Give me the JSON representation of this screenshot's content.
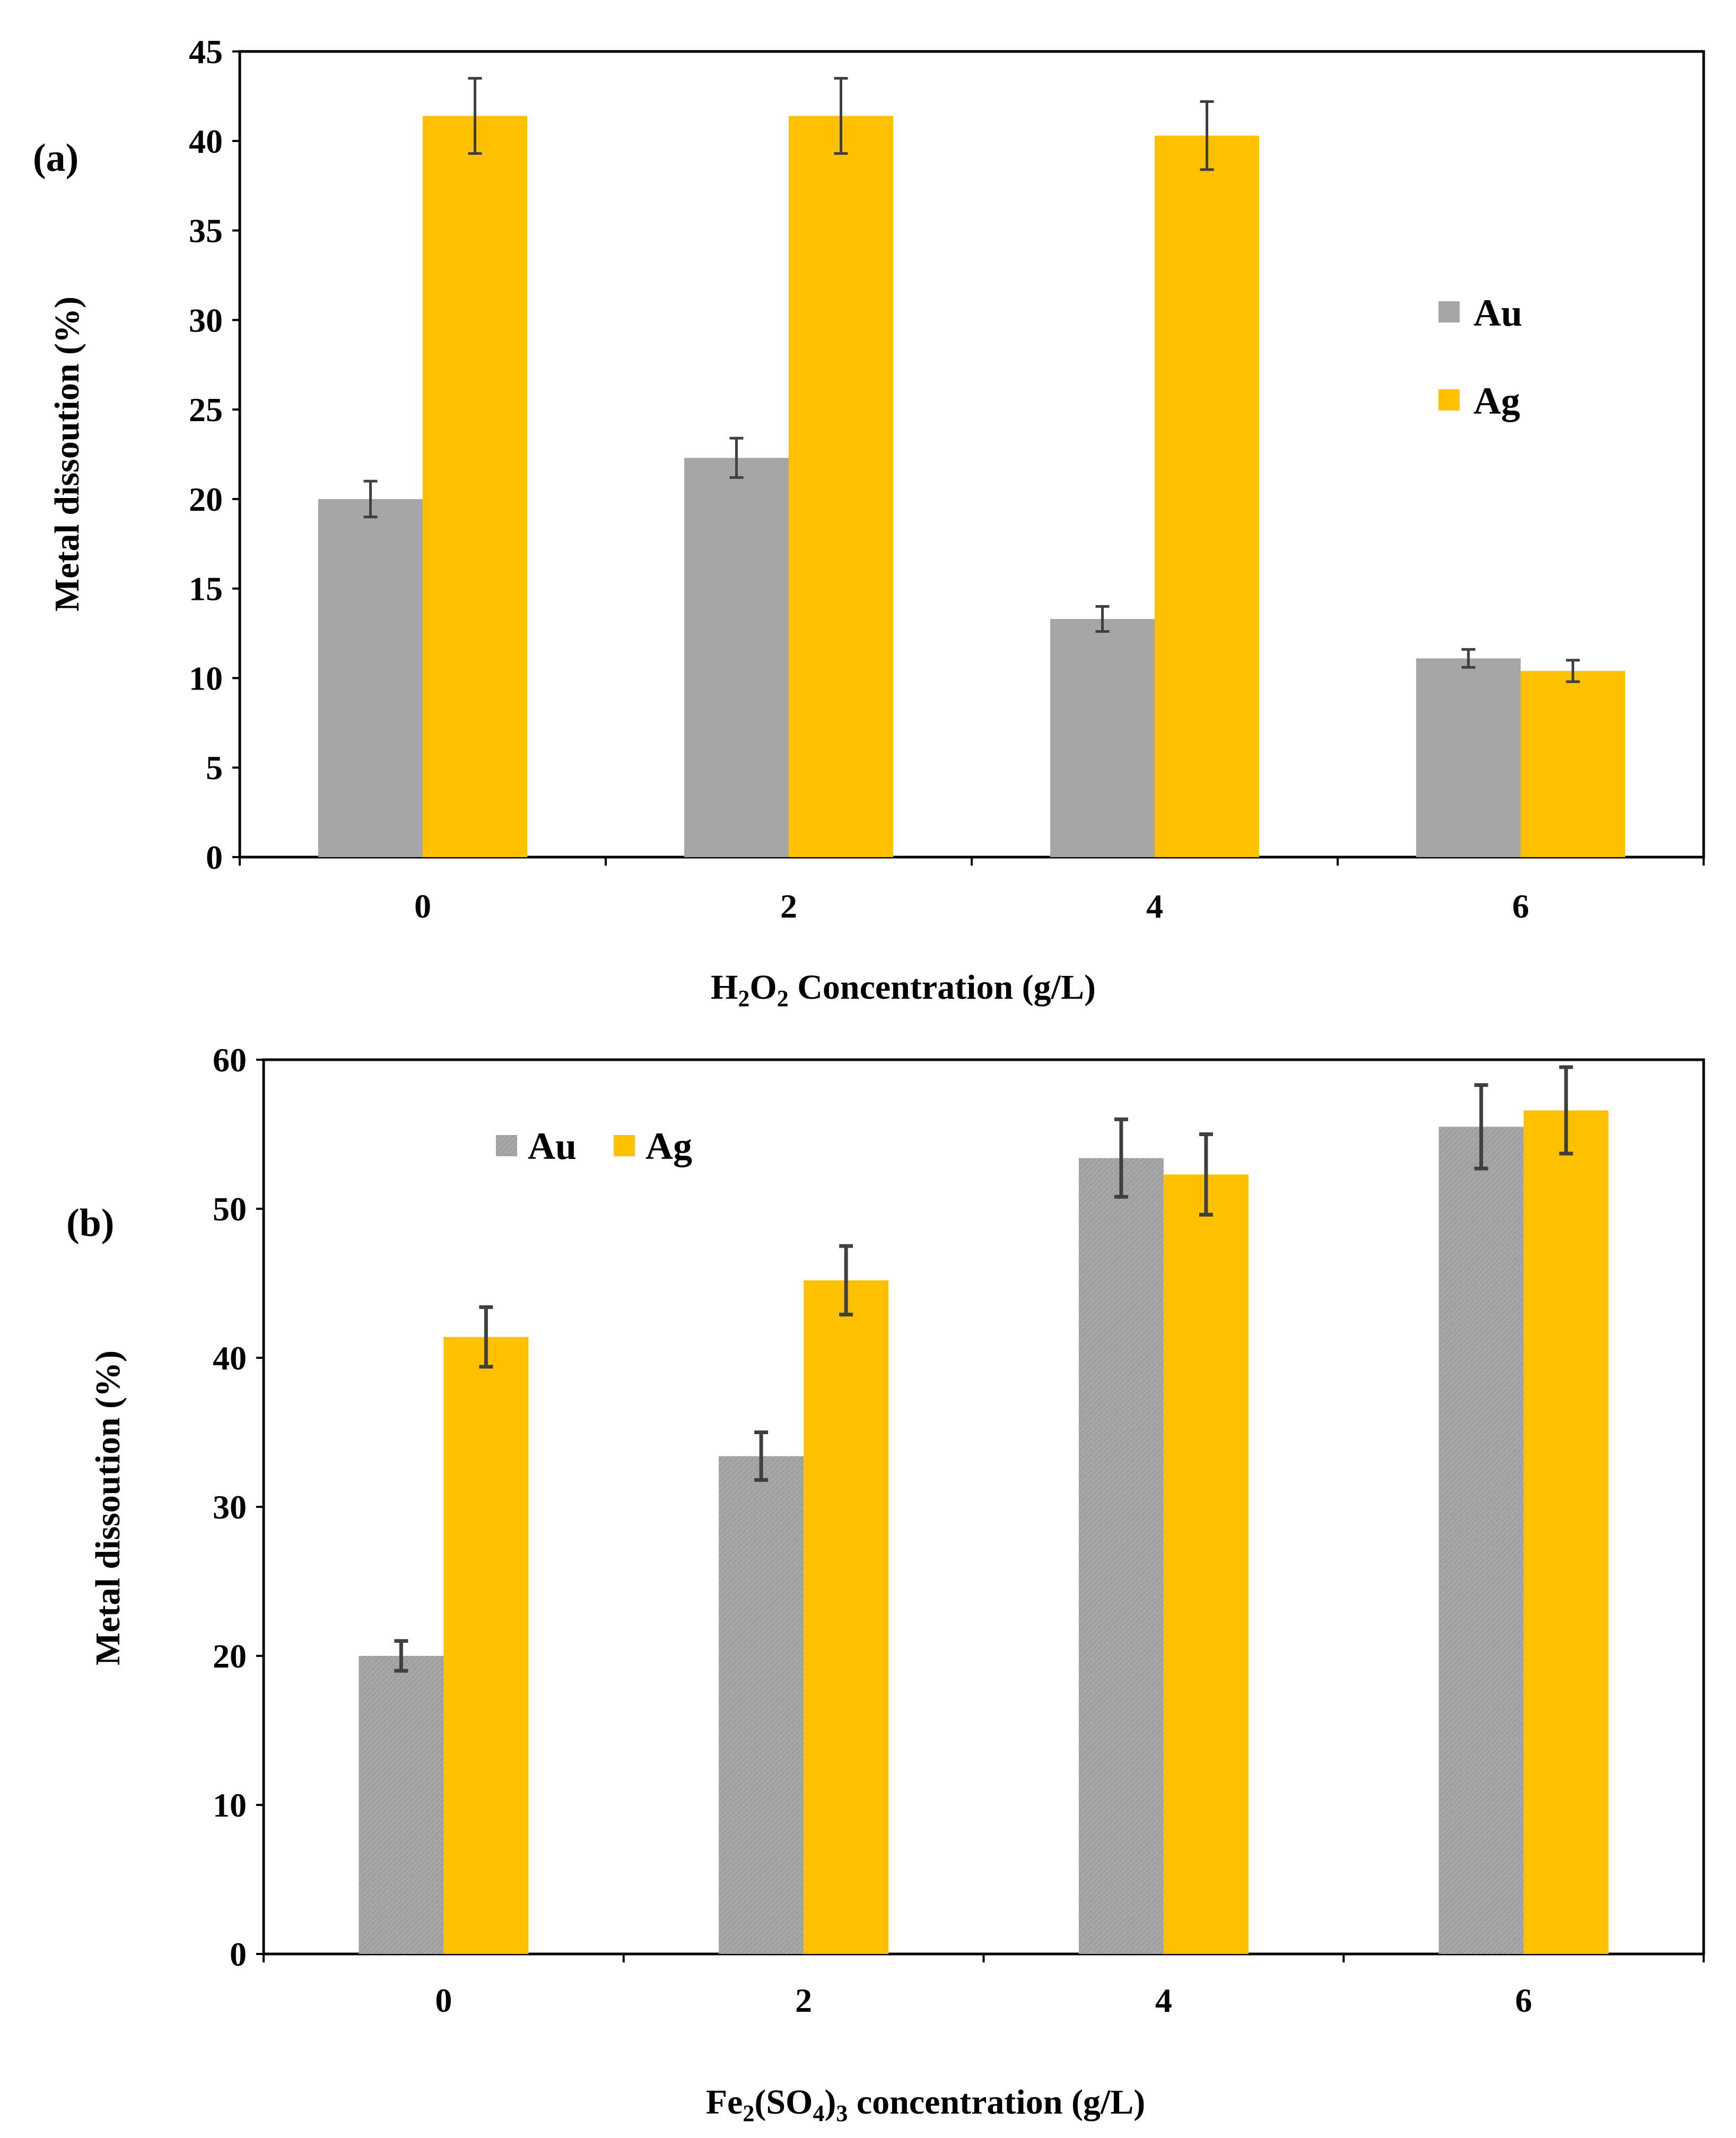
{
  "figure_title": "",
  "chart_data": [
    {
      "type": "bar",
      "panel_label": "(a)",
      "title": "",
      "categories": [
        "0",
        "2",
        "4",
        "6"
      ],
      "series": [
        {
          "name": "Au",
          "color": "#A6A6A6",
          "values": [
            20.0,
            22.3,
            13.3,
            11.1
          ],
          "errors": [
            1.0,
            1.1,
            0.7,
            0.5
          ]
        },
        {
          "name": "Ag",
          "color": "#FFC000",
          "values": [
            41.4,
            41.4,
            40.3,
            10.4
          ],
          "errors": [
            2.1,
            2.1,
            1.9,
            0.6
          ]
        }
      ],
      "xlabel": {
        "main": "H",
        "sub1": "2",
        "mid": "O",
        "sub2": "2",
        "rest": " Concentration (g/L)"
      },
      "ylabel": "Metal dissoution (%)",
      "ylim": [
        0,
        45
      ],
      "yticks": [
        "0",
        "5",
        "10",
        "15",
        "20",
        "25",
        "30",
        "35",
        "40",
        "45"
      ],
      "grid": false,
      "legend": "right, vertical"
    },
    {
      "type": "bar",
      "panel_label": "(b)",
      "title": "",
      "categories": [
        "0",
        "2",
        "4",
        "6"
      ],
      "series": [
        {
          "name": "Au",
          "color": "#A6A6A6",
          "values": [
            20.0,
            33.4,
            53.4,
            55.5
          ],
          "errors": [
            1.0,
            1.6,
            2.6,
            2.8
          ]
        },
        {
          "name": "Ag",
          "color": "#FFC000",
          "values": [
            41.4,
            45.2,
            52.3,
            56.6
          ],
          "errors": [
            2.0,
            2.3,
            2.7,
            2.9
          ]
        }
      ],
      "xlabel": {
        "main": "Fe",
        "sub1": "2",
        "mid": "(SO",
        "sub2": "4",
        "mid2": ")",
        "sub3": "3",
        "rest": " concentration (g/L)"
      },
      "ylabel": "Metal dissoution (%)",
      "ylim": [
        0,
        60
      ],
      "yticks": [
        "0",
        "10",
        "20",
        "30",
        "40",
        "50",
        "60"
      ],
      "grid": false,
      "legend": "top-left, horizontal"
    }
  ]
}
